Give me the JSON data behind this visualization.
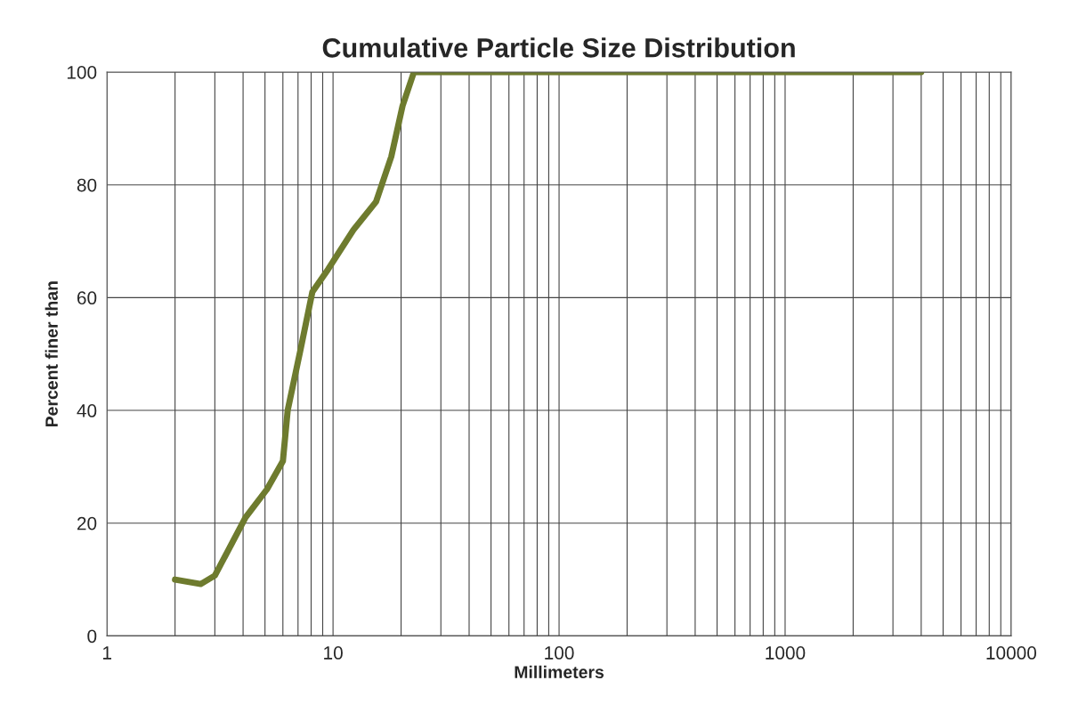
{
  "chart_data": {
    "type": "line",
    "title": "Cumulative Particle Size Distribution",
    "xlabel": "Millimeters",
    "ylabel": "Percent finer than",
    "log": "x",
    "grid": true,
    "marker": "none",
    "line_style": "solid",
    "xlim": [
      1,
      10000
    ],
    "ylim": [
      0,
      100
    ],
    "xticks": [
      1,
      {
        "value": 2,
        "label": null
      },
      {
        "value": 3,
        "label": null
      },
      {
        "value": 4,
        "label": null
      },
      {
        "value": 5,
        "label": null
      },
      {
        "value": 6,
        "label": null
      },
      {
        "value": 7,
        "label": null
      },
      {
        "value": 8,
        "label": null
      },
      {
        "value": 9,
        "label": null
      },
      10,
      {
        "value": 20,
        "label": null
      },
      {
        "value": 30,
        "label": null
      },
      {
        "value": 40,
        "label": null
      },
      {
        "value": 50,
        "label": null
      },
      {
        "value": 60,
        "label": null
      },
      {
        "value": 70,
        "label": null
      },
      {
        "value": 80,
        "label": null
      },
      {
        "value": 90,
        "label": null
      },
      100,
      {
        "value": 200,
        "label": null
      },
      {
        "value": 300,
        "label": null
      },
      {
        "value": 400,
        "label": null
      },
      {
        "value": 500,
        "label": null
      },
      {
        "value": 600,
        "label": null
      },
      {
        "value": 700,
        "label": null
      },
      {
        "value": 800,
        "label": null
      },
      {
        "value": 900,
        "label": null
      },
      1000,
      {
        "value": 2000,
        "label": null
      },
      {
        "value": 3000,
        "label": null
      },
      {
        "value": 4000,
        "label": null
      },
      {
        "value": 5000,
        "label": null
      },
      {
        "value": 6000,
        "label": null
      },
      {
        "value": 7000,
        "label": null
      },
      {
        "value": 8000,
        "label": null
      },
      {
        "value": 9000,
        "label": null
      },
      10000
    ],
    "yticks": [
      0,
      20,
      40,
      60,
      80,
      100
    ],
    "series": [
      {
        "color": "#6e7b2e",
        "x": [
          2,
          2.6,
          3,
          4.1,
          5.1,
          6,
          6.3,
          7.2,
          8.1,
          9.5,
          12.3,
          15.5,
          18.1,
          20.3,
          22.8,
          35,
          4000
        ],
        "values": [
          10,
          9.2,
          10.7,
          21,
          26,
          31,
          40,
          51,
          61,
          65,
          72,
          77,
          85,
          94,
          100,
          100,
          100
        ]
      }
    ]
  }
}
